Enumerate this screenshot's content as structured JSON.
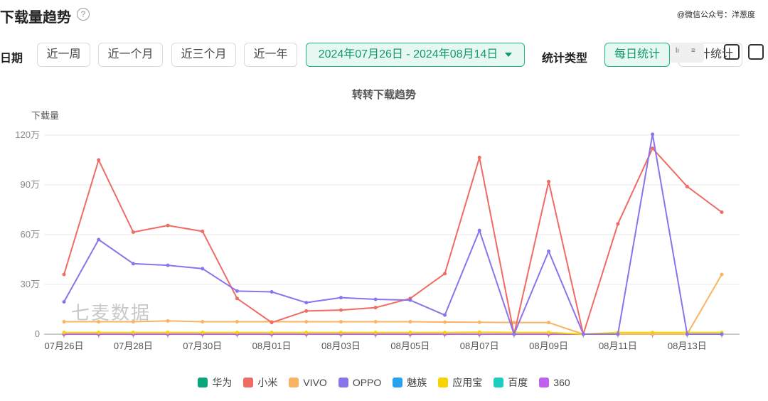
{
  "header": {
    "title": "下载量趋势",
    "help_icon": "?",
    "watermark": "@微信公众号：洋葱度"
  },
  "filters": {
    "date_label": "日期",
    "quick_ranges": [
      "近一周",
      "近一个月",
      "近三个月",
      "近一年"
    ],
    "date_range": "2024年07月26日 - 2024年08月14日",
    "type_label": "统计类型",
    "type_active": "每日统计",
    "type_other": "计统计"
  },
  "toolbar": {
    "mini_left": "lı",
    "mini_right": "≡",
    "icons": [
      "image-export-icon",
      "download-icon"
    ]
  },
  "chart_data": {
    "type": "line",
    "title": "转转下载趋势",
    "ylabel": "下载量",
    "ylim": [
      0,
      1200000
    ],
    "y_ticks": [
      0,
      300000,
      600000,
      900000,
      1200000
    ],
    "y_tick_labels": [
      "0",
      "30万",
      "60万",
      "90万",
      "120万"
    ],
    "x": [
      "07月26日",
      "07月27日",
      "07月28日",
      "07月29日",
      "07月30日",
      "07月31日",
      "08月01日",
      "08月02日",
      "08月03日",
      "08月04日",
      "08月05日",
      "08月06日",
      "08月07日",
      "08月08日",
      "08月09日",
      "08月10日",
      "08月11日",
      "08月12日",
      "08月13日",
      "08月14日"
    ],
    "x_tick_labels": [
      "07月26日",
      "07月28日",
      "07月30日",
      "08月01日",
      "08月03日",
      "08月05日",
      "08月07日",
      "08月09日",
      "08月11日",
      "08月13日"
    ],
    "grid": true,
    "legend_position": "bottom",
    "watermark": "七麦数据",
    "series": [
      {
        "name": "华为",
        "color": "#0aa57a",
        "values": [
          0,
          0,
          0,
          0,
          0,
          0,
          0,
          0,
          0,
          0,
          0,
          0,
          0,
          0,
          0,
          0,
          0,
          0,
          0,
          0
        ]
      },
      {
        "name": "小米",
        "color": "#ef6b63",
        "values": [
          360000,
          1050000,
          615000,
          655000,
          620000,
          215000,
          70000,
          140000,
          145000,
          160000,
          215000,
          365000,
          1065000,
          0,
          920000,
          0,
          665000,
          1120000,
          890000,
          735000
        ]
      },
      {
        "name": "VIVO",
        "color": "#f9b463",
        "values": [
          75000,
          75000,
          75000,
          80000,
          75000,
          75000,
          75000,
          75000,
          75000,
          75000,
          75000,
          73000,
          72000,
          70000,
          70000,
          0,
          0,
          0,
          0,
          360000
        ]
      },
      {
        "name": "OPPO",
        "color": "#8a74ea",
        "values": [
          195000,
          570000,
          425000,
          415000,
          395000,
          260000,
          255000,
          190000,
          220000,
          210000,
          205000,
          115000,
          625000,
          0,
          500000,
          0,
          0,
          1205000,
          0,
          0
        ]
      },
      {
        "name": "魅族",
        "color": "#27a1f2",
        "values": [
          0,
          0,
          0,
          0,
          0,
          0,
          0,
          0,
          0,
          0,
          0,
          0,
          0,
          0,
          0,
          0,
          0,
          0,
          0,
          0
        ]
      },
      {
        "name": "应用宝",
        "color": "#f7d300",
        "values": [
          10000,
          10000,
          10000,
          10000,
          10000,
          10000,
          10000,
          10000,
          10000,
          10000,
          10000,
          10000,
          12000,
          10000,
          10000,
          0,
          10000,
          10000,
          10000,
          10000
        ]
      },
      {
        "name": "百度",
        "color": "#1bcfc0",
        "values": [
          0,
          0,
          0,
          0,
          0,
          0,
          0,
          0,
          0,
          0,
          0,
          0,
          0,
          0,
          0,
          0,
          0,
          0,
          0,
          0
        ]
      },
      {
        "name": "360",
        "color": "#c060ef",
        "values": [
          0,
          0,
          0,
          0,
          0,
          0,
          0,
          0,
          0,
          0,
          0,
          0,
          0,
          0,
          0,
          0,
          0,
          0,
          0,
          0
        ]
      }
    ]
  }
}
